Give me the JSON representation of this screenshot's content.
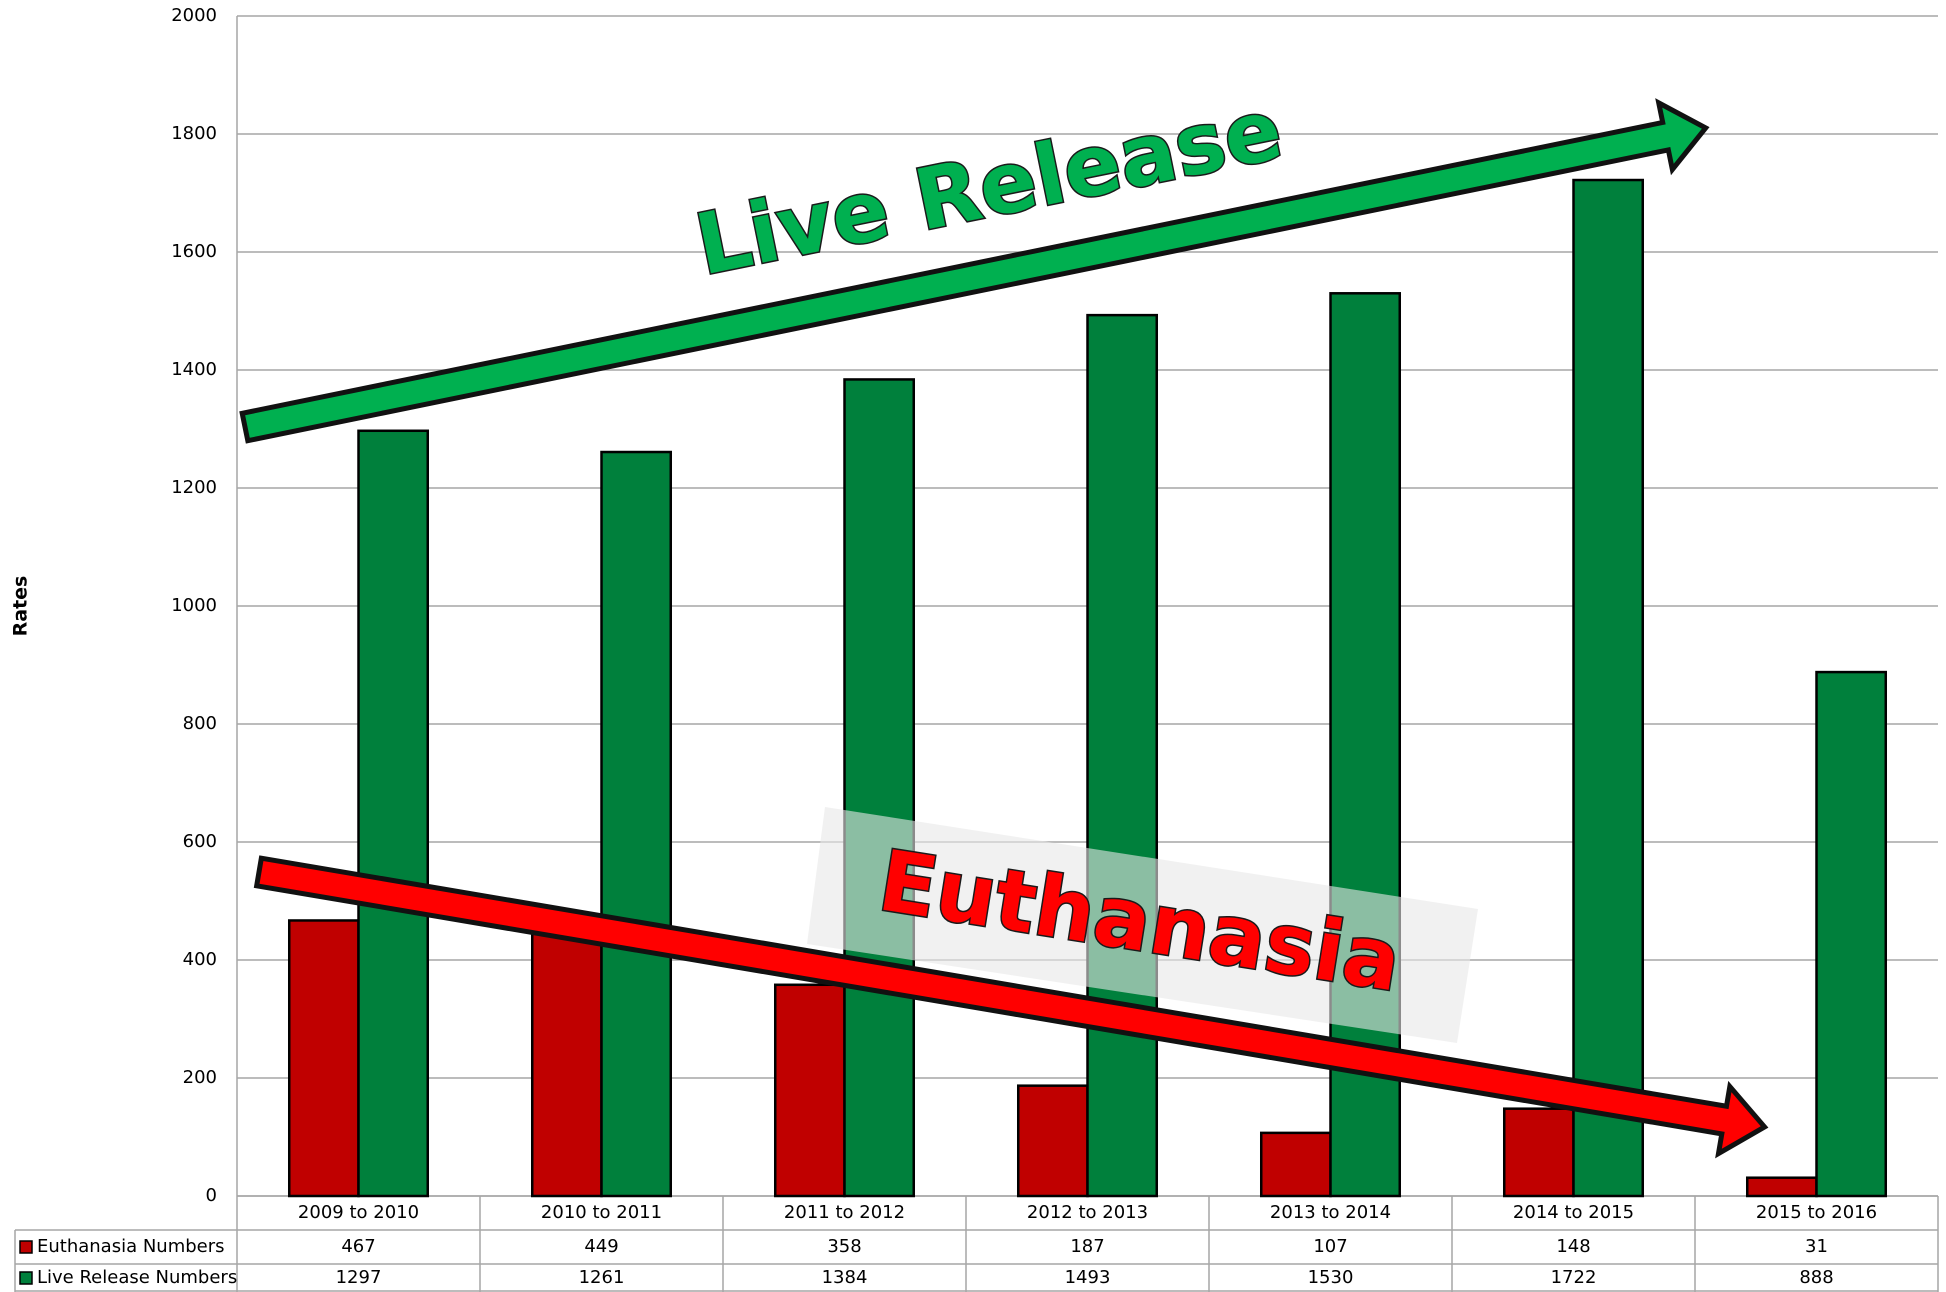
{
  "chart_data": {
    "type": "bar",
    "y_label": "Rates",
    "categories": [
      "2009 to 2010",
      "2010 to 2011",
      "2011 to 2012",
      "2012 to 2013",
      "2013 to 2014",
      "2014 to 2015",
      "2015 to 2016"
    ],
    "series": [
      {
        "name": "Euthanasia Numbers",
        "color": "#c00000",
        "values": [
          467,
          449,
          358,
          187,
          107,
          148,
          31
        ]
      },
      {
        "name": "Live Release Numbers",
        "color": "#00803c",
        "values": [
          1297,
          1261,
          1384,
          1493,
          1530,
          1722,
          888
        ]
      }
    ],
    "ylim": [
      0,
      2000
    ],
    "yticks": [
      0,
      200,
      400,
      600,
      800,
      1000,
      1200,
      1400,
      1600,
      1800,
      2000
    ],
    "grid": true,
    "annotations": [
      "Live Release",
      "Euthanasia"
    ]
  }
}
